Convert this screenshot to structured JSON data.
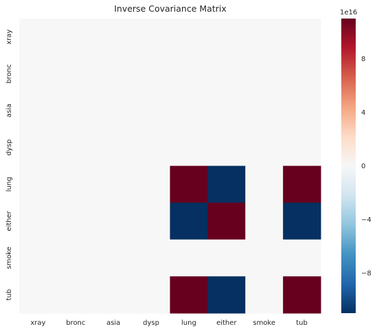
{
  "chart_data": {
    "type": "heatmap",
    "title": "Inverse Covariance Matrix",
    "x_labels": [
      "xray",
      "bronc",
      "asia",
      "dysp",
      "lung",
      "either",
      "smoke",
      "tub"
    ],
    "y_labels": [
      "xray",
      "bronc",
      "asia",
      "dysp",
      "lung",
      "either",
      "smoke",
      "tub"
    ],
    "values": [
      [
        0,
        0,
        0,
        0,
        0,
        200000000000000.0,
        0,
        0
      ],
      [
        0,
        0,
        0,
        0,
        0,
        0,
        0,
        0
      ],
      [
        0,
        0,
        0,
        0,
        0,
        0,
        0,
        0
      ],
      [
        0,
        0,
        0,
        0,
        0,
        0,
        0,
        0
      ],
      [
        0,
        0,
        0,
        0,
        1.1e+17,
        -1.1e+17,
        0,
        1.1e+17
      ],
      [
        200000000000000.0,
        0,
        0,
        0,
        -1.1e+17,
        1.1e+17,
        0,
        -1.1e+17
      ],
      [
        0,
        0,
        0,
        0,
        0,
        0,
        0,
        0
      ],
      [
        0,
        0,
        0,
        0,
        1.1e+17,
        -1.1e+17,
        0,
        1.1e+17
      ]
    ],
    "colormap": "RdBu_r",
    "vmin": -1.1e+17,
    "vmax": 1.1e+17,
    "colorbar": {
      "ticks": [
        8e+16,
        4e+16,
        0,
        -4e+16,
        -8e+16
      ],
      "tick_labels": [
        "8",
        "4",
        "0",
        "−4",
        "−8"
      ],
      "offset_label": "1e16"
    },
    "grid": false
  }
}
